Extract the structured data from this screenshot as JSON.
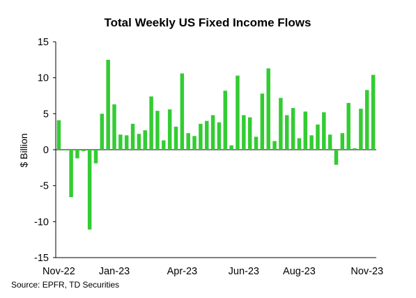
{
  "chart_data": {
    "type": "bar",
    "title": "Total Weekly US Fixed Income Flows",
    "ylabel": "$ Billion",
    "xlabel": "",
    "ylim": [
      -15,
      15
    ],
    "yticks": [
      15,
      10,
      5,
      0,
      -5,
      -10,
      -15
    ],
    "xtick_labels": [
      {
        "label": "Nov-22",
        "bar_index": 0
      },
      {
        "label": "Jan-23",
        "bar_index": 9
      },
      {
        "label": "Apr-23",
        "bar_index": 20
      },
      {
        "label": "Jun-23",
        "bar_index": 30
      },
      {
        "label": "Aug-23",
        "bar_index": 39
      },
      {
        "label": "Nov-23",
        "bar_index": 50
      }
    ],
    "bar_color": "#33cc33",
    "grid": false,
    "legend": "none",
    "values": [
      4.1,
      -0.1,
      -6.6,
      -1.2,
      -0.2,
      -11.1,
      -1.9,
      5.0,
      12.5,
      6.3,
      2.1,
      2.0,
      3.6,
      2.2,
      2.7,
      7.4,
      5.4,
      1.3,
      5.6,
      3.2,
      10.6,
      2.3,
      1.9,
      3.6,
      4.0,
      4.8,
      3.8,
      8.2,
      0.6,
      10.3,
      4.8,
      4.5,
      1.8,
      7.8,
      11.3,
      1.2,
      7.2,
      4.8,
      5.8,
      1.6,
      5.3,
      2.0,
      3.5,
      5.2,
      2.1,
      -2.1,
      2.3,
      6.5,
      0.2,
      5.7,
      8.3,
      10.4
    ],
    "source": "Source: EPFR, TD Securities"
  }
}
